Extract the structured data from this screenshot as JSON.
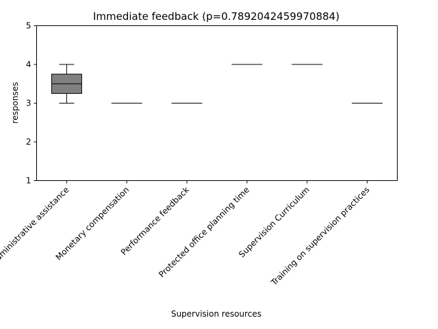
{
  "chart_data": {
    "type": "box",
    "title": "Immediate feedback (p=0.7892042459970884)",
    "xlabel": "Supervision resources",
    "ylabel": "responses",
    "ylim": [
      1,
      5
    ],
    "yticks": [
      "1",
      "2",
      "3",
      "4",
      "5"
    ],
    "grid": false,
    "categories": [
      "Administrative assistance",
      "Monetary compensation",
      "Performance feedback",
      "Protected office planning time",
      "Supervision Curriculum",
      "Training on supervision practices"
    ],
    "boxes": [
      {
        "whisker_low": 3,
        "q1": 3.25,
        "median": 3.5,
        "q3": 3.75,
        "whisker_high": 4
      },
      {
        "whisker_low": 3,
        "q1": 3,
        "median": 3,
        "q3": 3,
        "whisker_high": 3
      },
      {
        "whisker_low": 3,
        "q1": 3,
        "median": 3,
        "q3": 3,
        "whisker_high": 3
      },
      {
        "whisker_low": 4,
        "q1": 4,
        "median": 4,
        "q3": 4,
        "whisker_high": 4
      },
      {
        "whisker_low": 4,
        "q1": 4,
        "median": 4,
        "q3": 4,
        "whisker_high": 4
      },
      {
        "whisker_low": 3,
        "q1": 3,
        "median": 3,
        "q3": 3,
        "whisker_high": 3
      }
    ],
    "box_color": "#808080",
    "line_color": "#000000"
  }
}
